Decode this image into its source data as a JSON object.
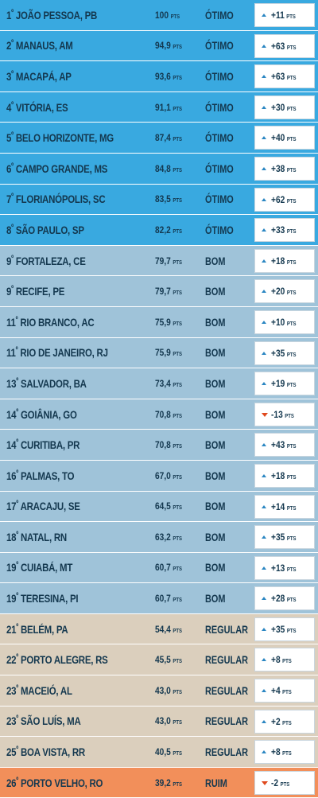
{
  "points_unit": "PTS",
  "rows": [
    {
      "rank": "1",
      "suffix": "º",
      "city": "JOÃO PESSOA, PB",
      "score": "100",
      "rating": "ÓTIMO",
      "change": "+11",
      "dir": "up",
      "tier": "otimo"
    },
    {
      "rank": "2",
      "suffix": "º",
      "city": "MANAUS, AM",
      "score": "94,9",
      "rating": "ÓTIMO",
      "change": "+63",
      "dir": "up",
      "tier": "otimo"
    },
    {
      "rank": "3",
      "suffix": "º",
      "city": "MACAPÁ, AP",
      "score": "93,6",
      "rating": "ÓTIMO",
      "change": "+63",
      "dir": "up",
      "tier": "otimo"
    },
    {
      "rank": "4",
      "suffix": "º",
      "city": "VITÓRIA, ES",
      "score": "91,1",
      "rating": "ÓTIMO",
      "change": "+30",
      "dir": "up",
      "tier": "otimo"
    },
    {
      "rank": "5",
      "suffix": "º",
      "city": "BELO HORIZONTE, MG",
      "score": "87,4",
      "rating": "ÓTIMO",
      "change": "+40",
      "dir": "up",
      "tier": "otimo"
    },
    {
      "rank": "6",
      "suffix": "º",
      "city": "CAMPO GRANDE, MS",
      "score": "84,8",
      "rating": "ÓTIMO",
      "change": "+38",
      "dir": "up",
      "tier": "otimo"
    },
    {
      "rank": "7",
      "suffix": "º",
      "city": "FLORIANÓPOLIS, SC",
      "score": "83,5",
      "rating": "ÓTIMO",
      "change": "+62",
      "dir": "up",
      "tier": "otimo"
    },
    {
      "rank": "8",
      "suffix": "º",
      "city": "SÃO PAULO, SP",
      "score": "82,2",
      "rating": "ÓTIMO",
      "change": "+33",
      "dir": "up",
      "tier": "otimo"
    },
    {
      "rank": "9",
      "suffix": "º",
      "city": "FORTALEZA, CE",
      "score": "79,7",
      "rating": "BOM",
      "change": "+18",
      "dir": "up",
      "tier": "bom"
    },
    {
      "rank": "9",
      "suffix": "º",
      "city": "RECIFE, PE",
      "score": "79,7",
      "rating": "BOM",
      "change": "+20",
      "dir": "up",
      "tier": "bom"
    },
    {
      "rank": "11",
      "suffix": "º",
      "city": "RIO BRANCO, AC",
      "score": "75,9",
      "rating": "BOM",
      "change": "+10",
      "dir": "up",
      "tier": "bom"
    },
    {
      "rank": "11",
      "suffix": "º",
      "city": "RIO DE JANEIRO, RJ",
      "score": "75,9",
      "rating": "BOM",
      "change": "+35",
      "dir": "up",
      "tier": "bom"
    },
    {
      "rank": "13",
      "suffix": "º",
      "city": "SALVADOR, BA",
      "score": "73,4",
      "rating": "BOM",
      "change": "+19",
      "dir": "up",
      "tier": "bom"
    },
    {
      "rank": "14",
      "suffix": "º",
      "city": "GOIÂNIA, GO",
      "score": "70,8",
      "rating": "BOM",
      "change": "-13",
      "dir": "down",
      "tier": "bom"
    },
    {
      "rank": "14",
      "suffix": "º",
      "city": "CURITIBA, PR",
      "score": "70,8",
      "rating": "BOM",
      "change": "+43",
      "dir": "up",
      "tier": "bom"
    },
    {
      "rank": "16",
      "suffix": "º",
      "city": "PALMAS, TO",
      "score": "67,0",
      "rating": "BOM",
      "change": "+18",
      "dir": "up",
      "tier": "bom"
    },
    {
      "rank": "17",
      "suffix": "º",
      "city": "ARACAJU, SE",
      "score": "64,5",
      "rating": "BOM",
      "change": "+14",
      "dir": "up",
      "tier": "bom"
    },
    {
      "rank": "18",
      "suffix": "º",
      "city": "NATAL, RN",
      "score": "63,2",
      "rating": "BOM",
      "change": "+35",
      "dir": "up",
      "tier": "bom"
    },
    {
      "rank": "19",
      "suffix": "º",
      "city": "CUIABÁ, MT",
      "score": "60,7",
      "rating": "BOM",
      "change": "+13",
      "dir": "up",
      "tier": "bom"
    },
    {
      "rank": "19",
      "suffix": "º",
      "city": "TERESINA, PI",
      "score": "60,7",
      "rating": "BOM",
      "change": "+28",
      "dir": "up",
      "tier": "bom"
    },
    {
      "rank": "21",
      "suffix": "º",
      "city": "BELÉM, PA",
      "score": "54,4",
      "rating": "REGULAR",
      "change": "+35",
      "dir": "up",
      "tier": "regular"
    },
    {
      "rank": "22",
      "suffix": "º",
      "city": "PORTO ALEGRE, RS",
      "score": "45,5",
      "rating": "REGULAR",
      "change": "+8",
      "dir": "up",
      "tier": "regular"
    },
    {
      "rank": "23",
      "suffix": "º",
      "city": "MACEIÓ, AL",
      "score": "43,0",
      "rating": "REGULAR",
      "change": "+4",
      "dir": "up",
      "tier": "regular"
    },
    {
      "rank": "23",
      "suffix": "º",
      "city": "SÃO LUÍS, MA",
      "score": "43,0",
      "rating": "REGULAR",
      "change": "+2",
      "dir": "up",
      "tier": "regular"
    },
    {
      "rank": "25",
      "suffix": "º",
      "city": "BOA VISTA, RR",
      "score": "40,5",
      "rating": "REGULAR",
      "change": "+8",
      "dir": "up",
      "tier": "regular"
    },
    {
      "rank": "26",
      "suffix": "º",
      "city": "PORTO VELHO, RO",
      "score": "39,2",
      "rating": "RUIM",
      "change": "-2",
      "dir": "down",
      "tier": "ruim"
    }
  ],
  "colors": {
    "otimo": "#39a9e0",
    "bom": "#9fc3d9",
    "regular": "#dbcfbd",
    "ruim": "#f28f5a",
    "up_arrow": "#2a86c2",
    "down_arrow": "#e0491d",
    "text": "#14384f"
  },
  "icons": {
    "up": "triangle-up-icon",
    "down": "triangle-down-icon"
  }
}
